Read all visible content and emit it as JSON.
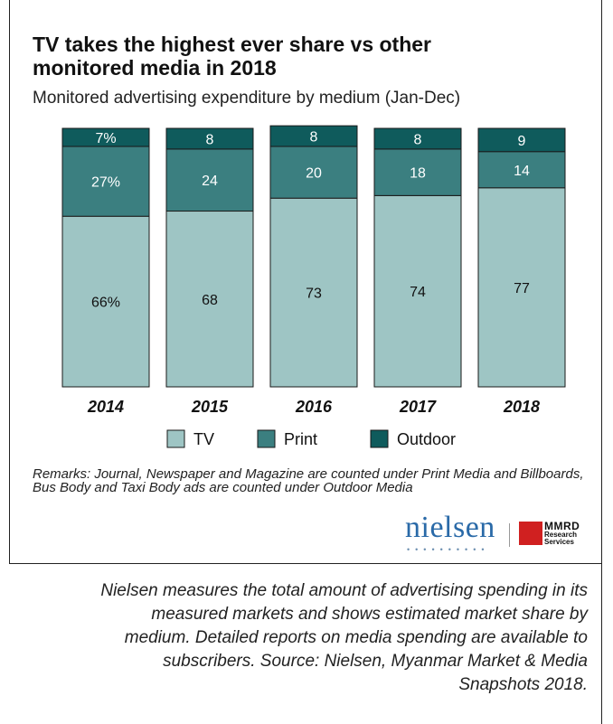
{
  "title_line1": "TV takes the highest ever share vs other",
  "title_line2": "monitored media in 2018",
  "subtitle": "Monitored advertising expenditure by medium (Jan-Dec)",
  "remarks": "Remarks: Journal, Newspaper and Magazine are counted under Print Media and Billboards, Bus Body and Taxi Body ads are counted under Outdoor Media",
  "logos": {
    "nielsen": "nielsen",
    "mmrd": "MMRD",
    "mmrd_sub1": "Research",
    "mmrd_sub2": "Services"
  },
  "caption": "Nielsen measures the total amount of advertising spending in its measured markets and shows estimated market share by medium. Detailed reports on media spending are available to subscribers. Source: Nielsen, Myanmar Market & Media Snapshots 2018.",
  "chart_data": {
    "type": "bar",
    "stacked": true,
    "percent": true,
    "categories": [
      "2014",
      "2015",
      "2016",
      "2017",
      "2018"
    ],
    "series": [
      {
        "name": "TV",
        "values": [
          66,
          68,
          73,
          74,
          77
        ],
        "labels": [
          "66%",
          "68",
          "73",
          "74",
          "77"
        ],
        "color": "#9ec5c4"
      },
      {
        "name": "Print",
        "values": [
          27,
          24,
          20,
          18,
          14
        ],
        "labels": [
          "27%",
          "24",
          "20",
          "18",
          "14"
        ],
        "color": "#3b7f80"
      },
      {
        "name": "Outdoor",
        "values": [
          7,
          8,
          8,
          8,
          9
        ],
        "labels": [
          "7%",
          "8",
          "8",
          "8",
          "9"
        ],
        "color": "#0f5b5c"
      }
    ],
    "ylim": [
      0,
      100
    ],
    "grid": false,
    "legend": "bottom"
  }
}
